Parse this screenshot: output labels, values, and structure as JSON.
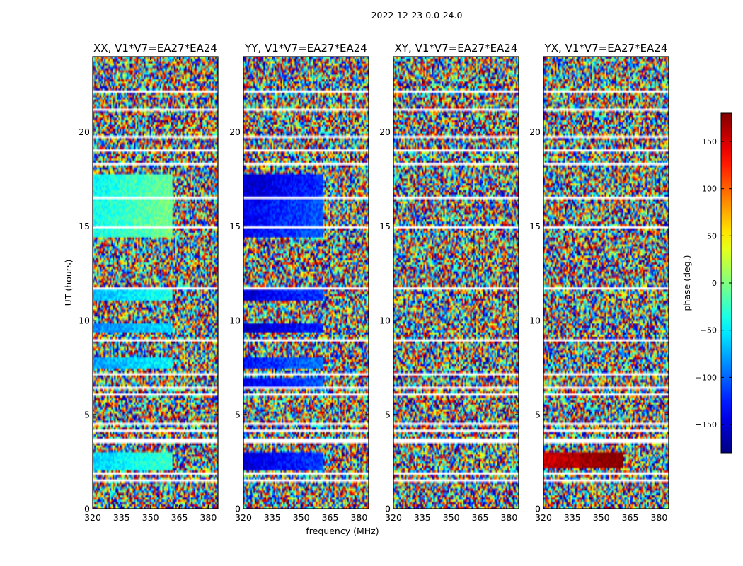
{
  "suptitle": "2022-12-23 0.0-24.0",
  "chart_data": [
    {
      "type": "heatmap",
      "title": "XX, V1*V7=EA27*EA24",
      "xlabel": "",
      "ylabel": "UT (hours)",
      "xlim": [
        320,
        385
      ],
      "ylim": [
        0,
        24
      ],
      "xticks": [
        320,
        335,
        350,
        365,
        380
      ],
      "yticks": [
        0,
        5,
        10,
        15,
        20
      ],
      "coherent_bands": [
        [
          2.0,
          3.0,
          -60
        ],
        [
          7.5,
          8.0,
          -80
        ],
        [
          9.4,
          9.8,
          -90
        ],
        [
          11.0,
          11.6,
          -70
        ],
        [
          14.4,
          16.5,
          -40
        ],
        [
          16.5,
          17.8,
          -45
        ]
      ]
    },
    {
      "type": "heatmap",
      "title": "YY, V1*V7=EA27*EA24",
      "xlabel": "frequency (MHz)",
      "ylabel": "",
      "xlim": [
        320,
        385
      ],
      "ylim": [
        0,
        24
      ],
      "xticks": [
        320,
        335,
        350,
        365,
        380
      ],
      "yticks": [
        0,
        5,
        10,
        15,
        20
      ],
      "coherent_bands": [
        [
          2.0,
          3.0,
          -150
        ],
        [
          6.5,
          6.9,
          -140
        ],
        [
          7.5,
          8.0,
          -130
        ],
        [
          9.3,
          9.8,
          -160
        ],
        [
          11.0,
          11.6,
          -150
        ],
        [
          14.4,
          16.5,
          -140
        ],
        [
          16.5,
          17.8,
          -155
        ]
      ]
    },
    {
      "type": "heatmap",
      "title": "XY, V1*V7=EA27*EA24",
      "xlabel": "",
      "ylabel": "",
      "xlim": [
        320,
        385
      ],
      "ylim": [
        0,
        24
      ],
      "xticks": [
        320,
        335,
        350,
        365,
        380
      ],
      "yticks": [
        0,
        5,
        10,
        15,
        20
      ],
      "coherent_bands": []
    },
    {
      "type": "heatmap",
      "title": "YX, V1*V7=EA27*EA24",
      "xlabel": "",
      "ylabel": "",
      "xlim": [
        320,
        385
      ],
      "ylim": [
        0,
        24
      ],
      "xticks": [
        320,
        335,
        350,
        365,
        380
      ],
      "yticks": [
        0,
        5,
        10,
        15,
        20
      ],
      "coherent_bands": [
        [
          2.2,
          3.0,
          150
        ]
      ]
    }
  ],
  "colorbar": {
    "label": "phase (deg.)",
    "colormap": "jet",
    "range": [
      -180,
      180
    ],
    "ticks": [
      150,
      100,
      50,
      0,
      -50,
      -100,
      -150
    ]
  },
  "flag_bands_ut": [
    [
      0.95,
      1.0
    ],
    [
      1.45,
      1.5
    ],
    [
      1.85,
      1.9
    ],
    [
      3.1,
      3.15
    ],
    [
      3.45,
      3.7
    ],
    [
      4.1,
      4.15
    ],
    [
      4.45,
      4.5
    ],
    [
      6.05,
      6.15
    ],
    [
      6.35,
      6.45
    ],
    [
      6.7,
      6.75
    ],
    [
      7.1,
      7.15
    ],
    [
      8.4,
      8.45
    ],
    [
      8.9,
      8.95
    ],
    [
      9.95,
      10.0
    ],
    [
      10.65,
      10.7
    ],
    [
      11.65,
      11.75
    ],
    [
      11.95,
      12.05
    ],
    [
      12.2,
      12.25
    ],
    [
      14.0,
      14.1
    ],
    [
      14.9,
      14.95
    ],
    [
      15.6,
      15.65
    ],
    [
      16.5,
      16.55
    ],
    [
      17.85,
      17.9
    ],
    [
      18.2,
      18.35
    ],
    [
      19.0,
      19.05
    ],
    [
      19.7,
      19.75
    ],
    [
      20.15,
      20.2
    ],
    [
      20.6,
      20.65
    ],
    [
      21.15,
      21.2
    ],
    [
      22.1,
      22.15
    ],
    [
      22.9,
      22.95
    ]
  ]
}
